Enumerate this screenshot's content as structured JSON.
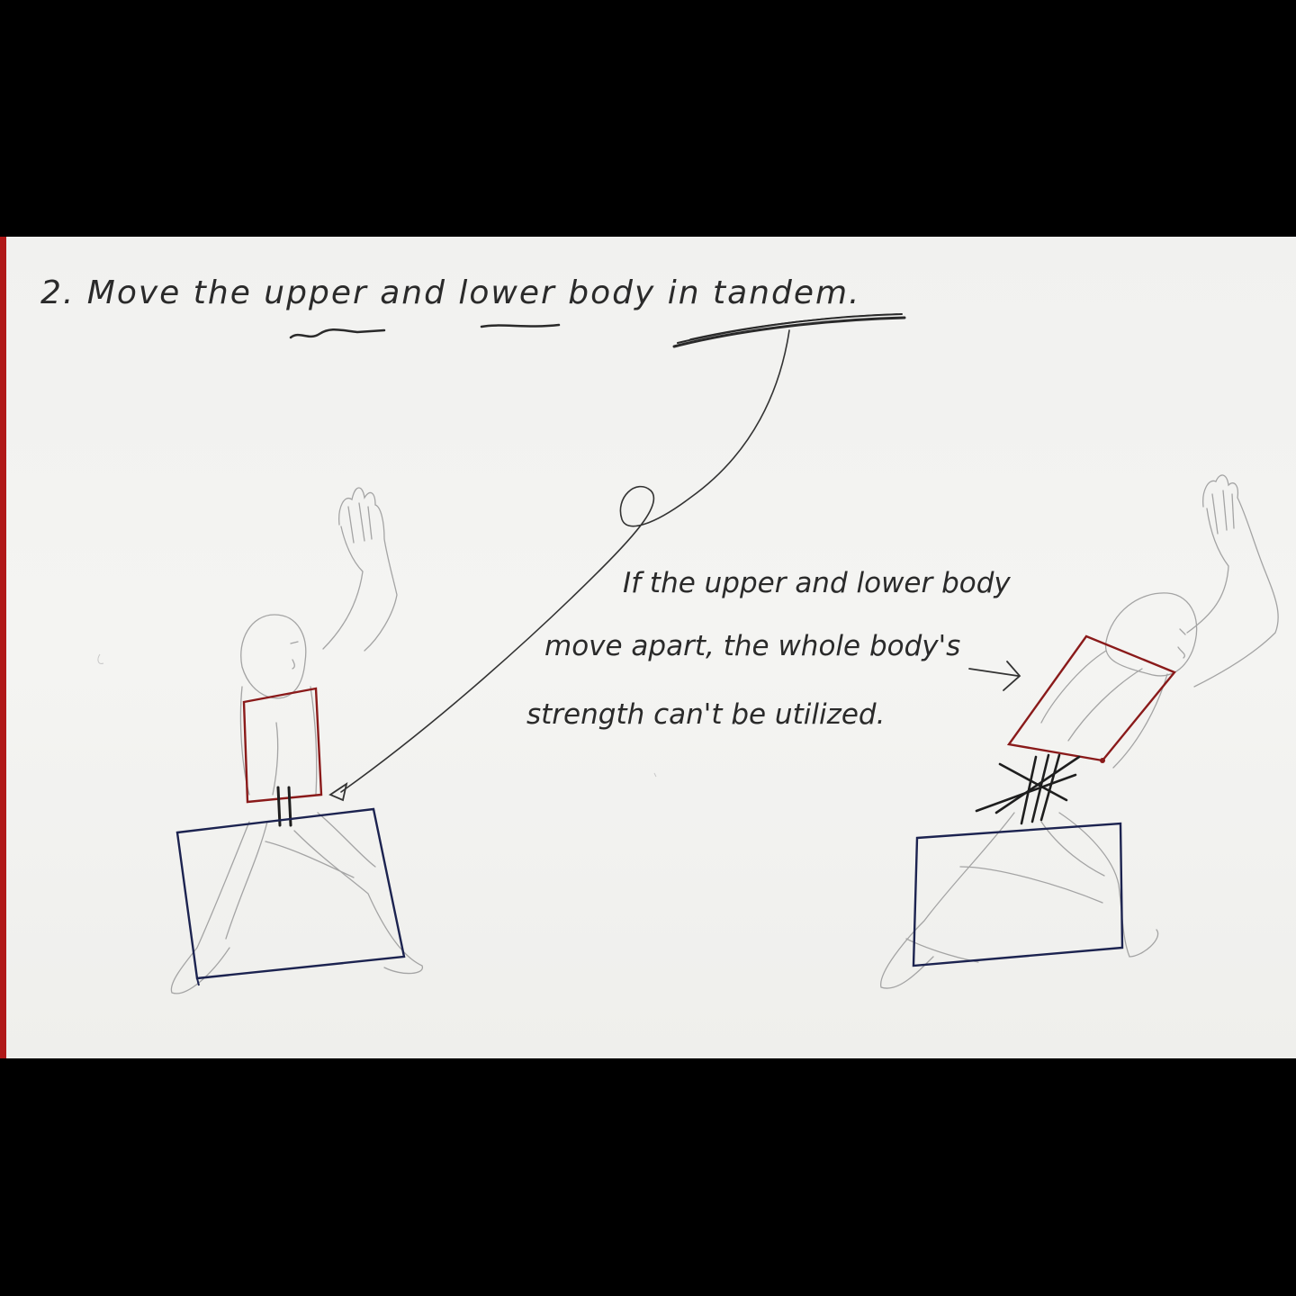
{
  "heading": {
    "text": "2. Move the upper and lower body in tandem."
  },
  "annotation": {
    "lines": [
      "If the upper and lower body",
      "move apart, the whole body's",
      "strength can't be utilized."
    ]
  },
  "colors": {
    "background_bars": "#000000",
    "paper": "#f3f3f1",
    "ink_text": "#2a2a2a",
    "pencil": "#9a9a9a",
    "upper_box": "#8a1a1a",
    "lower_box": "#1c2350",
    "edge_red": "#b01818"
  },
  "figures": [
    {
      "label": "aligned-pose",
      "upper_and_lower_aligned": true
    },
    {
      "label": "misaligned-pose",
      "upper_and_lower_aligned": false
    }
  ],
  "icons": [
    "curved-arrow-icon",
    "right-arrow-icon",
    "parallel-marks-icon",
    "crossed-out-parallel-icon"
  ]
}
